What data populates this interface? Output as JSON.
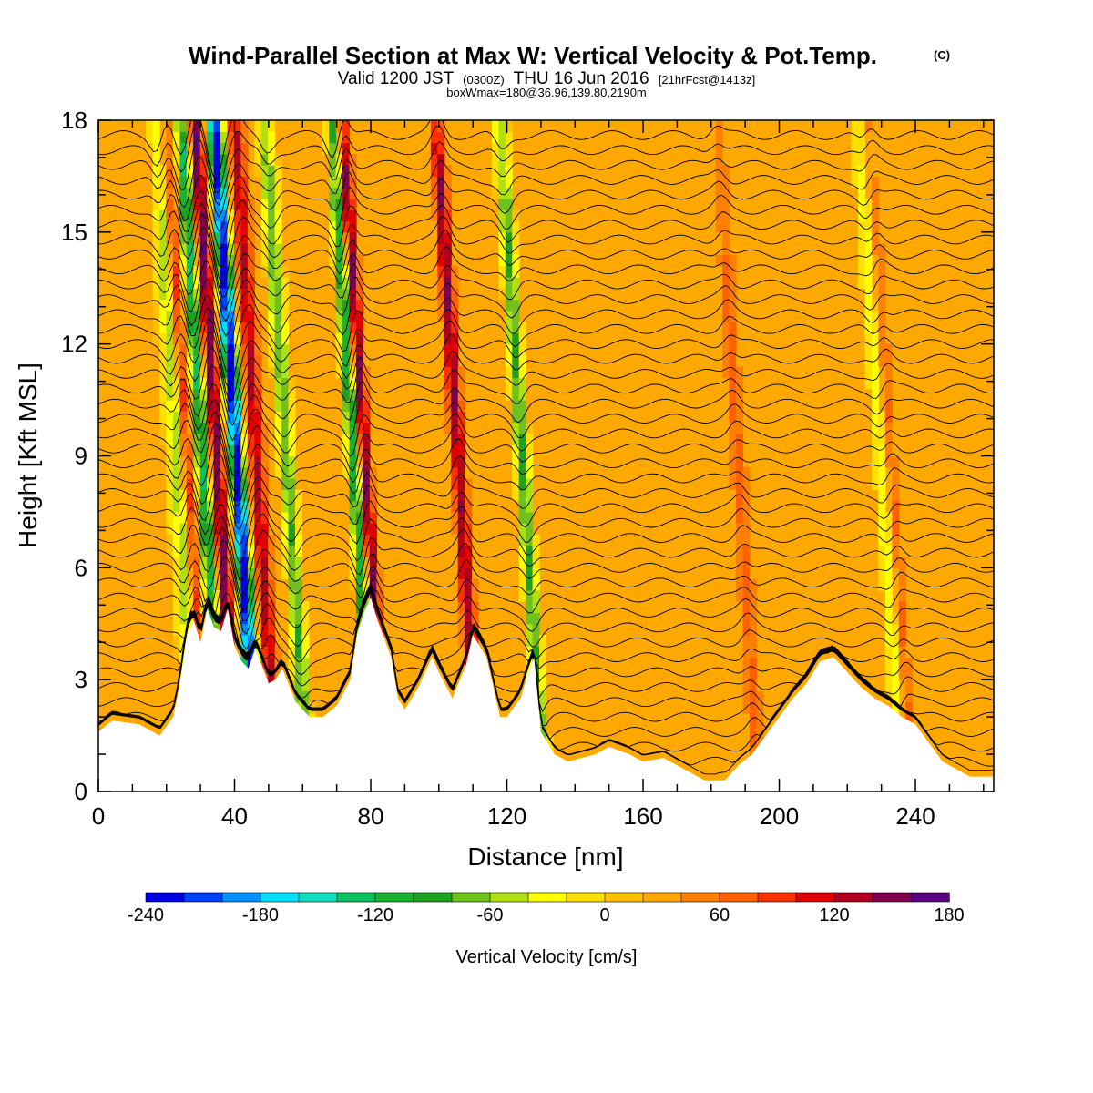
{
  "chart_data": {
    "type": "heatmap",
    "title": "Wind-Parallel Section at Max W: Vertical Velocity & Pot.Temp.",
    "title_mark": "(C)",
    "subtitle": {
      "valid": "Valid 1200 JST",
      "utc": "(0300Z)",
      "date": "THU 16 Jun 2016",
      "run": "[21hrFcst@1413z]",
      "box": "boxWmax=180@36.96,139.80,2190m"
    },
    "xlabel": "Distance [nm]",
    "ylabel": "Height [Kft MSL]",
    "xlim": [
      0,
      263
    ],
    "ylim": [
      0,
      18
    ],
    "x_ticks": [
      0,
      40,
      80,
      120,
      160,
      200,
      240
    ],
    "y_ticks": [
      0,
      3,
      6,
      9,
      12,
      15,
      18
    ],
    "background_value": 20,
    "updraft_peaks": [
      {
        "x": 29,
        "peak": 120
      },
      {
        "x": 38,
        "peak": 150
      },
      {
        "x": 50,
        "peak": 120
      },
      {
        "x": 81,
        "peak": 180
      },
      {
        "x": 109,
        "peak": 120
      },
      {
        "x": 191,
        "peak": 60
      },
      {
        "x": 236,
        "peak": 60
      }
    ],
    "downdraft_peaks": [
      {
        "x": 27,
        "peak": -120
      },
      {
        "x": 34,
        "peak": -150
      },
      {
        "x": 44,
        "peak": -240
      },
      {
        "x": 59,
        "peak": -90
      },
      {
        "x": 79,
        "peak": -180
      },
      {
        "x": 128,
        "peak": -90
      },
      {
        "x": 234,
        "peak": -60
      }
    ],
    "terrain_profile": {
      "x": [
        0,
        4,
        12,
        18,
        22,
        24,
        26,
        28,
        30,
        32,
        34,
        36,
        38,
        40,
        42,
        44,
        46,
        48,
        50,
        52,
        54,
        58,
        62,
        66,
        70,
        74,
        76,
        78,
        80,
        82,
        84,
        86,
        88,
        90,
        94,
        98,
        100,
        104,
        108,
        110,
        114,
        118,
        120,
        124,
        126,
        128,
        130,
        134,
        138,
        142,
        146,
        150,
        156,
        160,
        166,
        172,
        178,
        184,
        188,
        192,
        196,
        200,
        204,
        208,
        212,
        216,
        220,
        224,
        228,
        232,
        236,
        240,
        244,
        248,
        252,
        256,
        263
      ],
      "height": [
        1.6,
        1.9,
        1.8,
        1.5,
        2.0,
        2.9,
        4.2,
        4.6,
        4.0,
        4.9,
        4.4,
        4.3,
        4.9,
        3.9,
        3.5,
        3.3,
        3.8,
        3.4,
        2.9,
        3.0,
        3.3,
        2.4,
        2.0,
        2.0,
        2.3,
        3.0,
        4.2,
        4.8,
        5.2,
        4.6,
        4.1,
        3.6,
        2.5,
        2.2,
        2.8,
        3.6,
        3.2,
        2.5,
        3.4,
        4.2,
        3.6,
        2.0,
        2.0,
        2.5,
        3.1,
        3.6,
        1.6,
        1.0,
        0.8,
        0.9,
        1.0,
        1.2,
        1.0,
        0.8,
        0.9,
        0.6,
        0.3,
        0.3,
        0.7,
        1.0,
        1.5,
        2.0,
        2.5,
        2.9,
        3.5,
        3.6,
        3.2,
        2.8,
        2.5,
        2.3,
        2.0,
        1.8,
        1.3,
        0.8,
        0.6,
        0.4,
        0.4
      ]
    },
    "theta_contour_levels": 44,
    "colorbar": {
      "label": "Vertical Velocity [cm/s]",
      "tick_labels": [
        "-240",
        "-180",
        "-120",
        "-60",
        "0",
        "60",
        "120",
        "180"
      ],
      "tick_values": [
        -240,
        -180,
        -120,
        -60,
        0,
        60,
        120,
        180
      ],
      "range": [
        -240,
        180
      ],
      "colors": [
        "#0000e6",
        "#0040ff",
        "#0090ff",
        "#00e0ff",
        "#10e0c0",
        "#10c060",
        "#20b030",
        "#20a020",
        "#70c020",
        "#b0e010",
        "#ffff00",
        "#ffe000",
        "#ffc000",
        "#ffa800",
        "#ff8000",
        "#ff6000",
        "#ff3000",
        "#e00000",
        "#b00020",
        "#800050",
        "#5a0080"
      ]
    }
  }
}
